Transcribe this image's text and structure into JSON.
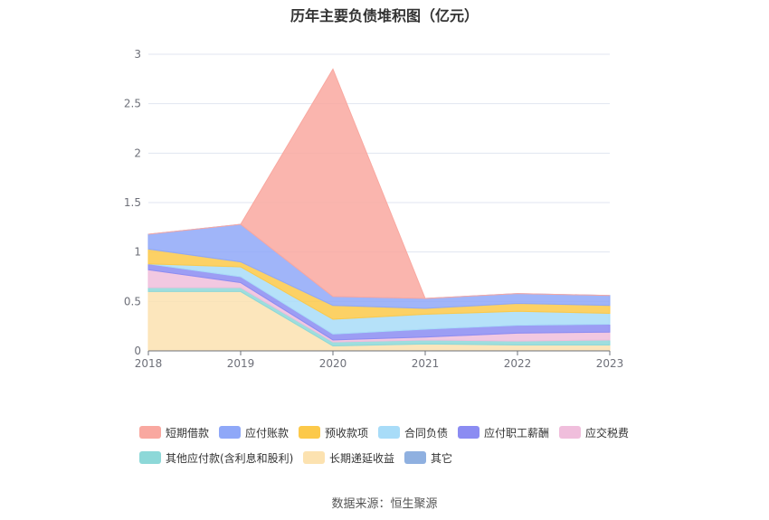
{
  "title": "历年主要负债堆积图（亿元）",
  "source_text": "数据来源：恒生聚源",
  "chart_data": {
    "type": "area",
    "stacked": true,
    "x": [
      "2018",
      "2019",
      "2020",
      "2021",
      "2022",
      "2023"
    ],
    "ylim": [
      0,
      3
    ],
    "yticks": [
      0,
      0.5,
      1,
      1.5,
      2,
      2.5,
      3
    ],
    "ytick_labels": [
      "0",
      "0.5",
      "1",
      "1.5",
      "2",
      "2.5",
      "3"
    ],
    "grid": true,
    "legend_position": "bottom",
    "series": [
      {
        "name": "短期借款",
        "color": "#f9a8a0",
        "values": [
          0,
          0,
          2.3,
          0,
          0,
          0
        ]
      },
      {
        "name": "应付账款",
        "color": "#8fa8f8",
        "values": [
          0.15,
          0.38,
          0.09,
          0.1,
          0.1,
          0.1
        ]
      },
      {
        "name": "预收款项",
        "color": "#fcc94a",
        "values": [
          0.15,
          0.05,
          0.14,
          0.06,
          0.08,
          0.08
        ]
      },
      {
        "name": "合同负债",
        "color": "#a8dcf8",
        "values": [
          0,
          0.1,
          0.15,
          0.15,
          0.14,
          0.11
        ]
      },
      {
        "name": "应付职工薪酬",
        "color": "#8b8cf2",
        "values": [
          0.06,
          0.06,
          0.06,
          0.08,
          0.08,
          0.08
        ]
      },
      {
        "name": "应交税费",
        "color": "#f0bedc",
        "values": [
          0.18,
          0.05,
          0.02,
          0.03,
          0.08,
          0.08
        ]
      },
      {
        "name": "其他应付款(含利息和股利)",
        "color": "#8dd8d8",
        "values": [
          0.04,
          0.04,
          0.04,
          0.04,
          0.04,
          0.05
        ]
      },
      {
        "name": "长期递延收益",
        "color": "#fce2b0",
        "values": [
          0.6,
          0.6,
          0.05,
          0.07,
          0.06,
          0.06
        ]
      },
      {
        "name": "其它",
        "color": "#8fb0e0",
        "values": [
          0,
          0,
          0,
          0,
          0,
          0
        ]
      }
    ]
  }
}
